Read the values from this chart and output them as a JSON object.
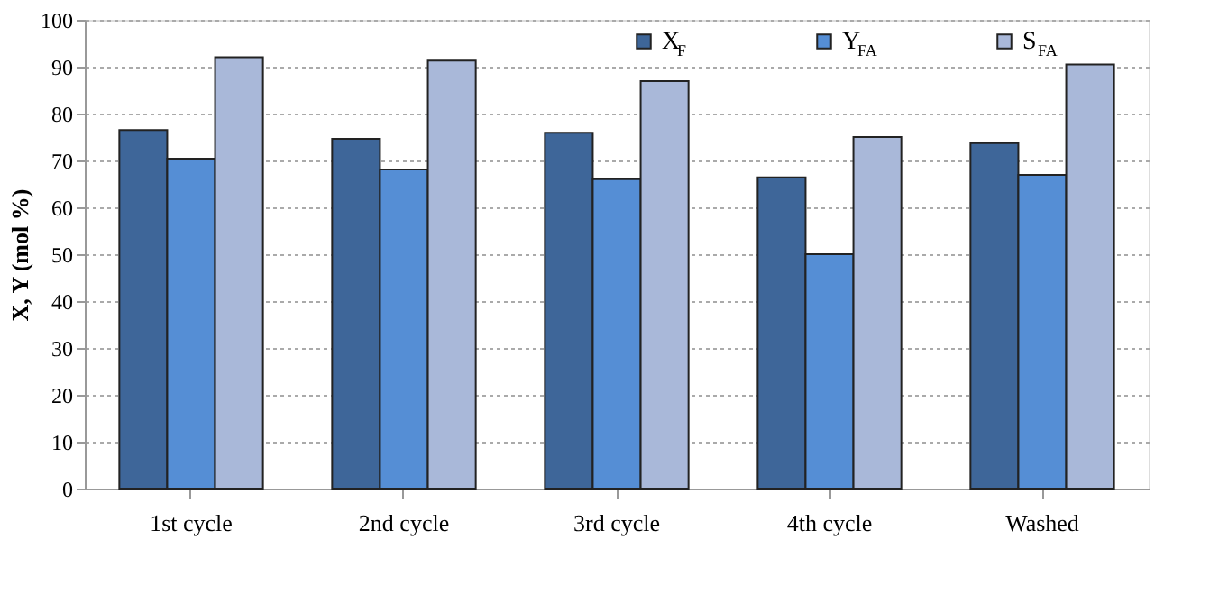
{
  "chart_data": {
    "type": "bar",
    "ylabel": "X, Y (mol %)",
    "categories": [
      "1st cycle",
      "2nd cycle",
      "3rd cycle",
      "4th cycle",
      "Washed"
    ],
    "series": [
      {
        "name": "X$_{F}$",
        "color": "#3e6699",
        "values": [
          76.5,
          74.6,
          75.9,
          66.4,
          73.7
        ]
      },
      {
        "name": "Y$_{FA}$",
        "color": "#558ed5",
        "values": [
          70.4,
          68.1,
          66.0,
          50.0,
          66.9
        ]
      },
      {
        "name": "S$_{FA}$",
        "color": "#a9b8d9",
        "values": [
          92.0,
          91.3,
          86.9,
          75.0,
          90.5
        ]
      }
    ],
    "ylim": [
      0,
      100
    ],
    "yticks": [
      0,
      10,
      20,
      30,
      40,
      50,
      60,
      70,
      80,
      90,
      100
    ],
    "grid": "y",
    "legend": "top right"
  }
}
